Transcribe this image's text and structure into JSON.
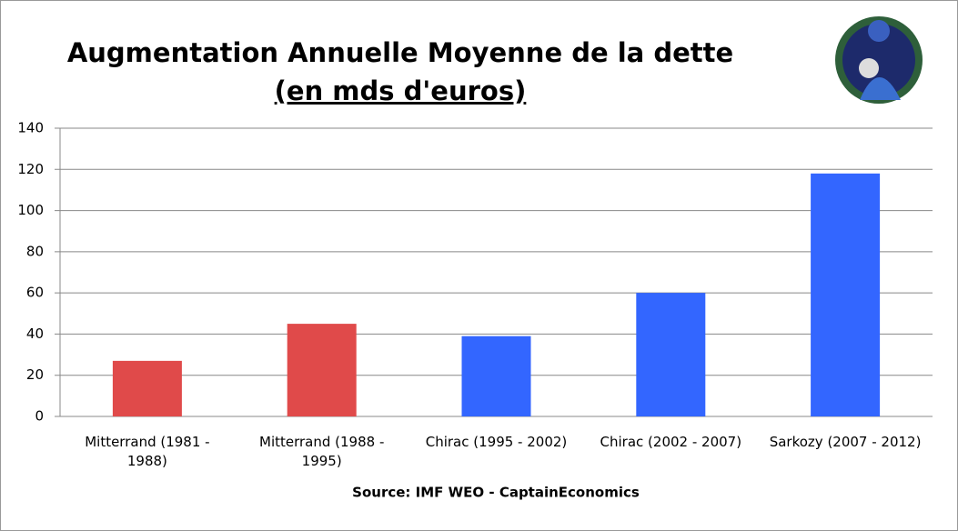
{
  "chart_data": {
    "type": "bar",
    "title": "Augmentation Annuelle Moyenne de la dette",
    "subtitle": "(en mds d'euros)",
    "source": "Source: IMF WEO - CaptainEconomics",
    "categories": [
      "Mitterrand (1981  - 1988)",
      "Mitterrand (1988  - 1995)",
      "Chirac (1995 - 2002)",
      "Chirac (2002 - 2007)",
      "Sarkozy (2007 - 2012)"
    ],
    "values": [
      27,
      45,
      39,
      60,
      118
    ],
    "colors": [
      "#e04a4a",
      "#e04a4a",
      "#3366ff",
      "#3366ff",
      "#3366ff"
    ],
    "ylim": [
      0,
      140
    ],
    "yticks": [
      0,
      20,
      40,
      60,
      80,
      100,
      120,
      140
    ],
    "grid": true
  }
}
